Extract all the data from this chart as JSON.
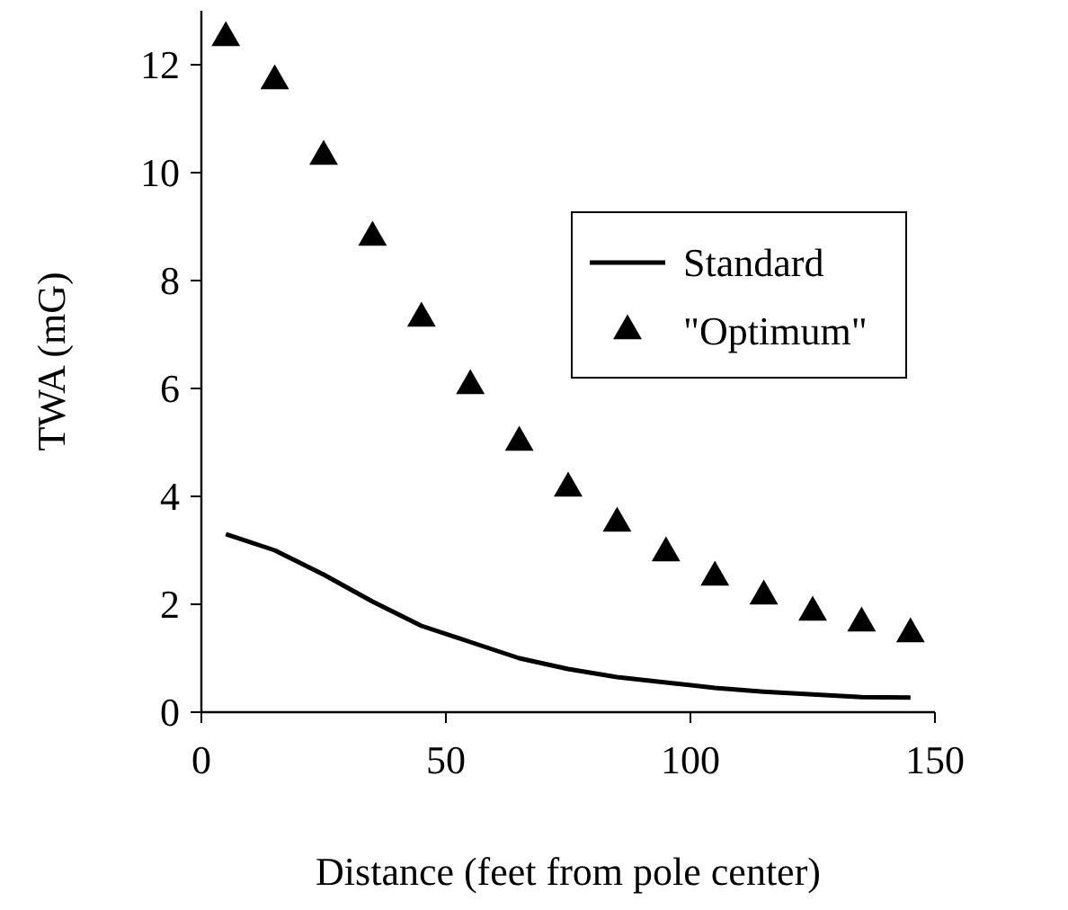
{
  "chart_data": {
    "type": "line",
    "xlabel": "Distance (feet from pole center)",
    "ylabel": "TWA (mG)",
    "xlim": [
      0,
      150
    ],
    "xticks": [
      0,
      50,
      100,
      150
    ],
    "ylim": [
      0,
      13
    ],
    "yticks": [
      0,
      2,
      4,
      6,
      8,
      10,
      12
    ],
    "legend": "top right",
    "grid": false,
    "series": [
      {
        "name": "Standard",
        "type": "line",
        "color": "#000000",
        "marker": "none",
        "line_style": "solid",
        "x": [
          5,
          15,
          25,
          35,
          45,
          55,
          65,
          75,
          85,
          95,
          105,
          115,
          125,
          135,
          145
        ],
        "values": [
          3.3,
          3.0,
          2.55,
          2.05,
          1.6,
          1.3,
          1.0,
          0.8,
          0.65,
          0.55,
          0.45,
          0.38,
          0.33,
          0.28,
          0.27
        ]
      },
      {
        "name": "\"Optimum\"",
        "type": "scatter",
        "color": "#000000",
        "marker": "triangle",
        "x": [
          5,
          15,
          25,
          35,
          45,
          55,
          65,
          75,
          85,
          95,
          105,
          115,
          125,
          135,
          145
        ],
        "values": [
          12.5,
          11.7,
          10.3,
          8.8,
          7.3,
          6.05,
          5.0,
          4.15,
          3.5,
          2.95,
          2.5,
          2.15,
          1.85,
          1.65,
          1.45
        ]
      }
    ]
  }
}
